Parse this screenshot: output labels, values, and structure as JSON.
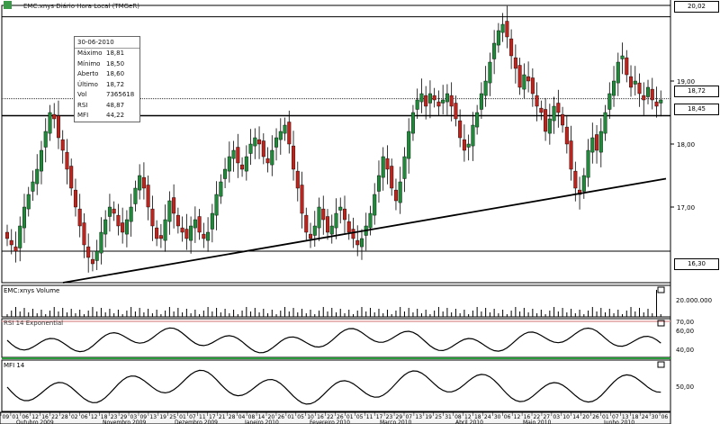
{
  "title": "EMC:xnys Diário Hora Local (TMGeR)",
  "colors": {
    "up": "#1f8a3a",
    "down": "#c0231c",
    "rsi_band": "#e0a0a0",
    "mfi_band": "#2a9a3a"
  },
  "tooltip": {
    "date": "30-06-2010",
    "rows": [
      {
        "k": "Máximo",
        "v": "18,81"
      },
      {
        "k": "Mínimo",
        "v": "18,50"
      },
      {
        "k": "Aberto",
        "v": "18,60"
      },
      {
        "k": "Último",
        "v": "18,72"
      },
      {
        "k": "Vol",
        "v": "7365618"
      },
      {
        "k": "RSI",
        "v": "48,87"
      },
      {
        "k": "MFI",
        "v": "44,22"
      }
    ]
  },
  "price_labels": {
    "high": "20,02",
    "current": "18,72",
    "resistance": "18,45",
    "low": "16,30"
  },
  "panels": {
    "volume": {
      "label": "EMC:xnys Volume",
      "value_label": "20.000.000"
    },
    "rsi": {
      "label": "RSI 14 Exponential",
      "tick_labels": [
        "70,00",
        "60,00",
        "40,00"
      ]
    },
    "mfi": {
      "label": "MFI 14",
      "tick_labels": [
        "50,00"
      ]
    }
  },
  "chart_data": {
    "type": "candlestick",
    "title": "EMC:xnys Diário Hora Local (TMGeR)",
    "y_ticks": [
      "20,02",
      "19,00",
      "18,72",
      "18,45",
      "18,00",
      "17,00",
      "16,30"
    ],
    "ylim": [
      15.8,
      20.2
    ],
    "horizontal_levels": [
      20.02,
      18.45,
      16.3
    ],
    "current_price": 18.72,
    "trendline": {
      "from_value": 15.8,
      "to_value": 17.45
    },
    "x_tick_labels": [
      "09",
      "01",
      "06",
      "12",
      "16",
      "22",
      "28",
      "02",
      "06",
      "12",
      "18",
      "23",
      "29",
      "03",
      "09",
      "13",
      "19",
      "25",
      "01",
      "07",
      "11",
      "17",
      "21",
      "28",
      "04",
      "08",
      "14",
      "20",
      "26",
      "01",
      "05",
      "10",
      "16",
      "22",
      "26",
      "01",
      "05",
      "11",
      "17",
      "23",
      "29",
      "07",
      "13",
      "19",
      "25",
      "31",
      "08",
      "12",
      "18",
      "24",
      "30",
      "06",
      "12",
      "16",
      "22",
      "27",
      "03",
      "10",
      "14",
      "20",
      "26",
      "01",
      "07",
      "13",
      "18",
      "24",
      "30",
      "06"
    ],
    "months": [
      "Outubro 2009",
      "Novembro 2009",
      "Dezembro 2009",
      "Janeiro 2010",
      "Fevereiro 2010",
      "Março 2010",
      "Abril 2010",
      "Maio 2010",
      "Junho 2010"
    ],
    "close": [
      16.5,
      16.4,
      16.3,
      16.7,
      17.0,
      17.2,
      17.4,
      17.6,
      17.9,
      18.2,
      18.5,
      18.4,
      18.1,
      17.9,
      17.6,
      17.3,
      17.0,
      16.7,
      16.4,
      16.2,
      16.1,
      16.3,
      16.6,
      16.8,
      17.0,
      16.9,
      16.7,
      16.6,
      16.8,
      17.0,
      17.3,
      17.5,
      17.3,
      17.0,
      16.7,
      16.5,
      16.5,
      16.8,
      17.1,
      16.9,
      16.7,
      16.6,
      16.5,
      16.7,
      16.8,
      16.6,
      16.5,
      16.6,
      16.9,
      17.2,
      17.4,
      17.6,
      17.8,
      17.9,
      17.7,
      17.6,
      17.8,
      18.0,
      18.1,
      18.0,
      17.8,
      17.7,
      17.9,
      18.1,
      18.2,
      18.3,
      18.0,
      17.6,
      17.3,
      16.9,
      16.6,
      16.5,
      16.7,
      17.0,
      16.8,
      16.6,
      16.7,
      16.9,
      17.0,
      16.8,
      16.6,
      16.5,
      16.4,
      16.5,
      16.7,
      16.9,
      17.2,
      17.5,
      17.8,
      17.6,
      17.3,
      17.1,
      17.4,
      17.8,
      18.2,
      18.5,
      18.7,
      18.8,
      18.6,
      18.8,
      18.7,
      18.6,
      18.7,
      18.8,
      18.6,
      18.4,
      18.1,
      17.9,
      18.0,
      18.3,
      18.5,
      18.8,
      19.0,
      19.3,
      19.6,
      19.8,
      19.9,
      19.7,
      19.4,
      19.2,
      18.9,
      19.1,
      19.0,
      18.8,
      18.6,
      18.5,
      18.2,
      18.4,
      18.6,
      18.5,
      18.3,
      18.0,
      17.6,
      17.3,
      17.2,
      17.5,
      17.9,
      18.1,
      17.9,
      18.2,
      18.5,
      18.8,
      19.0,
      19.3,
      19.4,
      19.1,
      18.9,
      19.0,
      18.8,
      18.7,
      18.9,
      18.7,
      18.6,
      18.7
    ]
  }
}
